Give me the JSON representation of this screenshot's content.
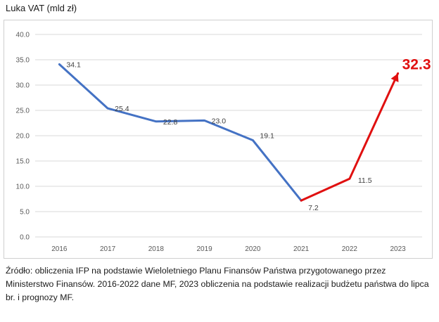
{
  "title": "Luka VAT (mld zł)",
  "source_note": "Źródło: obliczenia IFP na podstawie Wieloletniego Planu Finansów Państwa przygotowanego przez Ministerstwo Finansów. 2016-2022 dane MF, 2023 obliczenia na podstawie realizacji budżetu państwa do lipca br. i prognozy MF.",
  "colors": {
    "actual": "#4472c4",
    "forecast": "#e01010",
    "grid": "#d9d9d9"
  },
  "chart_data": {
    "type": "line",
    "x": [
      "2016",
      "2017",
      "2018",
      "2019",
      "2020",
      "2021",
      "2022",
      "2023"
    ],
    "y_ticks": [
      "0.0",
      "5.0",
      "10.0",
      "15.0",
      "20.0",
      "25.0",
      "30.0",
      "35.0",
      "40.0"
    ],
    "series": [
      {
        "values": [
          34.1,
          25.4,
          22.8,
          23.0,
          19.1,
          7.2,
          null,
          null
        ],
        "color": "#4472c4"
      },
      {
        "values": [
          null,
          null,
          null,
          null,
          null,
          7.2,
          11.5,
          32.3
        ],
        "color": "#e01010"
      }
    ],
    "labels": [
      "34.1",
      "25.4",
      "22.8",
      "23.0",
      "19.1",
      "7.2",
      "11.5",
      "32.3"
    ],
    "ylim": [
      0,
      40
    ],
    "grid": true,
    "legend": false
  }
}
